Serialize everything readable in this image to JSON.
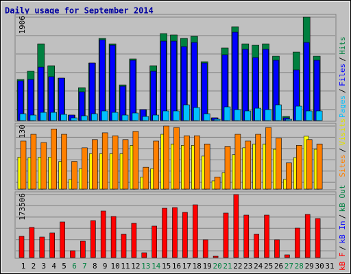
{
  "chart_data": [
    {
      "type": "grouped-bar",
      "title": "Daily usage for September 2014",
      "categories": [
        "1",
        "2",
        "3",
        "4",
        "5",
        "6",
        "7",
        "8",
        "9",
        "10",
        "11",
        "12",
        "13",
        "14",
        "15",
        "16",
        "17",
        "18",
        "19",
        "20",
        "21",
        "22",
        "23",
        "24",
        "25",
        "26",
        "27",
        "28",
        "29",
        "30",
        "31"
      ],
      "category_colors": [
        "#000000",
        "#000000",
        "#000000",
        "#000000",
        "#000000",
        "#008040",
        "#008040",
        "#000000",
        "#000000",
        "#000000",
        "#000000",
        "#000000",
        "#008040",
        "#008040",
        "#000000",
        "#000000",
        "#000000",
        "#000000",
        "#000000",
        "#008040",
        "#008040",
        "#000000",
        "#000000",
        "#000000",
        "#000000",
        "#000000",
        "#008040",
        "#008040",
        "#000000",
        "#000000",
        "#000000"
      ],
      "ylim": [
        0,
        1906
      ],
      "yticks": [
        1906
      ],
      "separator": "/",
      "series": [
        {
          "name": "Hits",
          "color": "#008040",
          "values": [
            757,
            909,
            1413,
            1010,
            782,
            101,
            606,
            1060,
            1514,
            1413,
            656,
            1136,
            202,
            1010,
            1603,
            1578,
            1514,
            1552,
            1085,
            50,
            1338,
            1729,
            1413,
            1388,
            1413,
            1186,
            76,
            1262,
            1906,
            1186,
            0
          ]
        },
        {
          "name": "Files",
          "color": "#0000ff",
          "values": [
            732,
            757,
            984,
            808,
            782,
            101,
            530,
            1060,
            1489,
            1388,
            631,
            1111,
            202,
            909,
            1464,
            1464,
            1363,
            1439,
            1060,
            50,
            1212,
            1628,
            1313,
            1161,
            1313,
            1111,
            50,
            934,
            1439,
            1111,
            0
          ]
        },
        {
          "name": "Pages",
          "color": "#00c0ff",
          "values": [
            126,
            101,
            151,
            151,
            114,
            50,
            88,
            126,
            177,
            151,
            101,
            139,
            76,
            101,
            177,
            177,
            290,
            240,
            126,
            25,
            252,
            202,
            177,
            227,
            202,
            290,
            25,
            265,
            177,
            177,
            0
          ]
        }
      ]
    },
    {
      "type": "grouped-bar",
      "ylim": [
        0,
        130
      ],
      "yticks": [
        130
      ],
      "series": [
        {
          "name": "Visits",
          "color": "#ffff00",
          "values": [
            66,
            65,
            66,
            66,
            57,
            20,
            42,
            73,
            73,
            73,
            73,
            90,
            25,
            42,
            113,
            93,
            90,
            90,
            68,
            17,
            34,
            71,
            85,
            93,
            93,
            82,
            20,
            65,
            109,
            82,
            0
          ]
        },
        {
          "name": "Sites",
          "color": "#ff8000",
          "values": [
            99,
            113,
            96,
            124,
            113,
            57,
            85,
            102,
            116,
            110,
            102,
            119,
            45,
            99,
            130,
            127,
            110,
            110,
            93,
            25,
            88,
            113,
            99,
            113,
            127,
            105,
            54,
            90,
            102,
            93,
            0
          ]
        }
      ]
    },
    {
      "type": "bar",
      "ylim": [
        0,
        173506
      ],
      "yticks": [
        173506
      ],
      "series": [
        {
          "name": "kB F",
          "color": "#ff0000",
          "values": [
            58466,
            82984,
            56580,
            67896,
            98072,
            18860,
            45264,
            101844,
            128248,
            113160,
            64124,
            94300,
            13202,
            86756,
            135792,
            137678,
            124476,
            145222,
            49036,
            3772,
            122590,
            173506,
            116932,
            64124,
            116932,
            49036,
            7544,
            81098,
            118818,
            107502,
            0
          ]
        }
      ],
      "legend_extra": [
        {
          "text": "kB In",
          "color": "#0000ff"
        },
        {
          "text": "kB Out",
          "color": "#008040"
        }
      ]
    }
  ]
}
